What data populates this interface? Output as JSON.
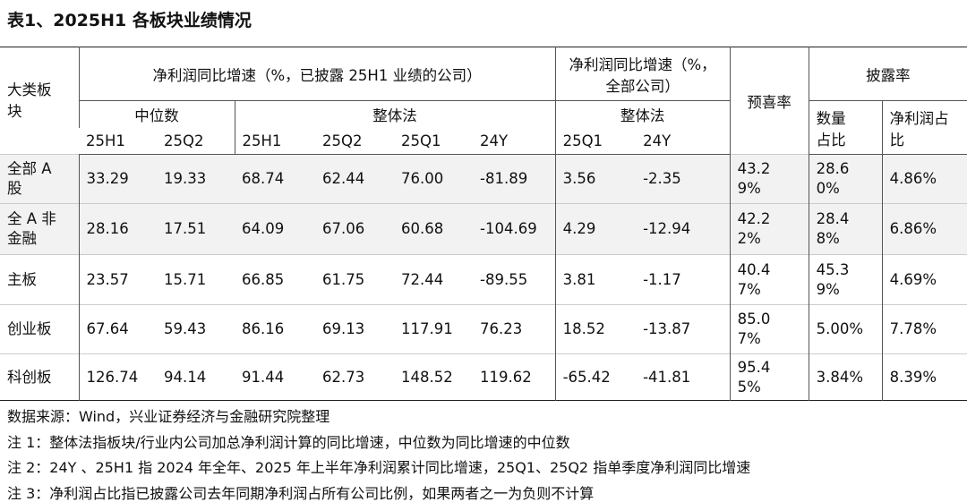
{
  "title": "表1、2025H1 各板块业绩情况",
  "table": {
    "header": {
      "sector": "大类板块",
      "group_disclosed": "净利润同比增速（%，已披露 25H1 业绩的公司）",
      "group_all": "净利润同比增速（%，全部公司）",
      "pre_gain_rate": "预喜率",
      "disclosure_rate": "披露率",
      "median": "中位数",
      "overall_disclosed": "整体法",
      "overall_all": "整体法",
      "count_share": "数量占比",
      "profit_share": "净利润占比",
      "periods": [
        "25H1",
        "25Q2",
        "25H1",
        "25Q2",
        "25Q1",
        "24Y",
        "25Q1",
        "24Y"
      ]
    },
    "rows": [
      [
        "全部 A 股",
        "33.29",
        "19.33",
        "68.74",
        "62.44",
        "76.00",
        "-81.89",
        "3.56",
        "-2.35",
        "43.29%",
        "28.60%",
        "4.86%"
      ],
      [
        "全 A 非金融",
        "28.16",
        "17.51",
        "64.09",
        "67.06",
        "60.68",
        "-104.69",
        "4.29",
        "-12.94",
        "42.22%",
        "28.48%",
        "6.86%"
      ],
      [
        "主板",
        "23.57",
        "15.71",
        "66.85",
        "61.75",
        "72.44",
        "-89.55",
        "3.81",
        "-1.17",
        "40.47%",
        "45.39%",
        "4.69%"
      ],
      [
        "创业板",
        "67.64",
        "59.43",
        "86.16",
        "69.13",
        "117.91",
        "76.23",
        "18.52",
        "-13.87",
        "85.07%",
        "5.00%",
        "7.78%"
      ],
      [
        "科创板",
        "126.74",
        "94.14",
        "91.44",
        "62.73",
        "148.52",
        "119.62",
        "-65.42",
        "-41.81",
        "95.45%",
        "3.84%",
        "8.39%"
      ]
    ]
  },
  "notes": [
    "数据来源：Wind，兴业证券经济与金融研究院整理",
    "注 1：整体法指板块/行业内公司加总净利润计算的同比增速，中位数为同比增速的中位数",
    "注 2：24Y 、25H1 指 2024 年全年、2025 年上半年净利润累计同比增速，25Q1、25Q2 指单季度净利润同比增速",
    "注 3：净利润占比指已披露公司去年同期净利润占所有公司比例，如果两者之一为负则不计算"
  ]
}
